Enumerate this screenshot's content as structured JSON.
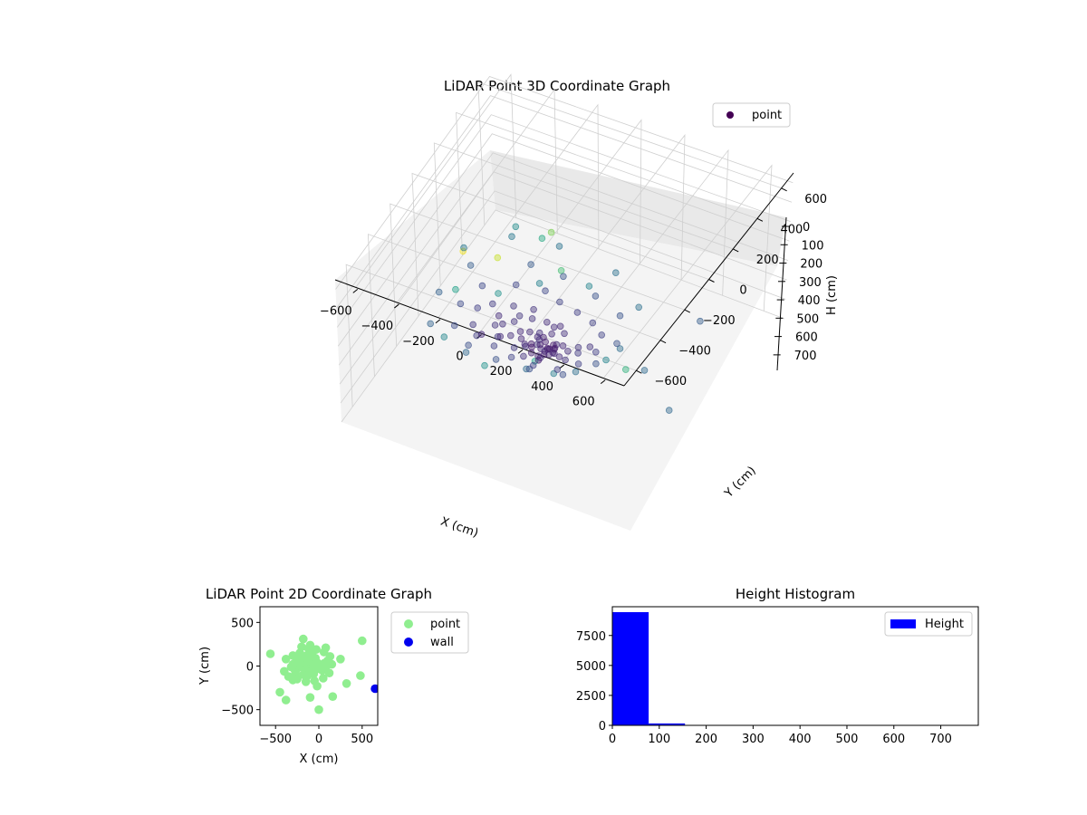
{
  "chart_data": [
    {
      "type": "scatter",
      "projection": "3d",
      "title": "LiDAR Point 3D Coordinate Graph",
      "xlabel": "X (cm)",
      "ylabel": "Y (cm)",
      "zlabel": "H (cm)",
      "xlim": [
        -700,
        700
      ],
      "ylim": [
        -700,
        700
      ],
      "zlim": [
        0,
        750
      ],
      "z_axis_inverted": true,
      "x_ticks": [
        -600,
        -400,
        -200,
        0,
        200,
        400,
        600
      ],
      "y_ticks": [
        -600,
        -400,
        -200,
        0,
        200,
        400,
        600
      ],
      "z_ticks": [
        0,
        100,
        200,
        300,
        400,
        500,
        600,
        700
      ],
      "colormap": "viridis",
      "color_by": "height",
      "legend": {
        "entries": [
          "point"
        ],
        "placement": "top-right",
        "marker_color": "#440154"
      },
      "grid": true,
      "series": [
        {
          "name": "point",
          "points": [
            [
              -150,
              0,
              60
            ],
            [
              -120,
              20,
              70
            ],
            [
              -100,
              -10,
              80
            ],
            [
              -90,
              30,
              55
            ],
            [
              -80,
              -20,
              65
            ],
            [
              -70,
              10,
              75
            ],
            [
              -60,
              40,
              60
            ],
            [
              -50,
              -30,
              85
            ],
            [
              -130,
              -40,
              70
            ],
            [
              -110,
              50,
              65
            ],
            [
              -140,
              35,
              90
            ],
            [
              -95,
              -45,
              72
            ],
            [
              -75,
              55,
              58
            ],
            [
              -65,
              -15,
              95
            ],
            [
              -55,
              25,
              68
            ],
            [
              -45,
              -5,
              78
            ],
            [
              -160,
              15,
              62
            ],
            [
              -170,
              -25,
              88
            ],
            [
              -125,
              60,
              74
            ],
            [
              -85,
              -60,
              66
            ],
            [
              -115,
              5,
              110
            ],
            [
              -105,
              -35,
              120
            ],
            [
              -135,
              45,
              105
            ],
            [
              -90,
              70,
              98
            ],
            [
              -60,
              -50,
              115
            ],
            [
              -40,
              20,
              102
            ],
            [
              -30,
              -20,
              92
            ],
            [
              -150,
              -55,
              108
            ],
            [
              -180,
              40,
              96
            ],
            [
              -200,
              0,
              84
            ],
            [
              -220,
              30,
              90
            ],
            [
              -240,
              -20,
              100
            ],
            [
              -260,
              50,
              110
            ],
            [
              -280,
              -40,
              95
            ],
            [
              -300,
              20,
              105
            ],
            [
              -320,
              -10,
              115
            ],
            [
              -340,
              60,
              100
            ],
            [
              -360,
              -60,
              90
            ],
            [
              -250,
              80,
              120
            ],
            [
              -270,
              -80,
              130
            ],
            [
              -200,
              100,
              110
            ],
            [
              -180,
              -100,
              125
            ],
            [
              -20,
              40,
              88
            ],
            [
              0,
              -30,
              94
            ],
            [
              20,
              10,
              100
            ],
            [
              40,
              -50,
              110
            ],
            [
              60,
              30,
              120
            ],
            [
              80,
              -10,
              130
            ],
            [
              100,
              60,
              115
            ],
            [
              -40,
              90,
              105
            ],
            [
              -60,
              -90,
              112
            ],
            [
              -100,
              110,
              98
            ],
            [
              -130,
              -110,
              108
            ],
            [
              -80,
              130,
              95
            ],
            [
              -140,
              120,
              100
            ],
            [
              -220,
              150,
              110
            ],
            [
              -300,
              120,
              120
            ],
            [
              -380,
              80,
              130
            ],
            [
              -420,
              20,
              140
            ],
            [
              -400,
              -60,
              125
            ],
            [
              -350,
              -120,
              135
            ],
            [
              -250,
              -150,
              145
            ],
            [
              -150,
              -180,
              150
            ],
            [
              -50,
              -170,
              140
            ],
            [
              50,
              -140,
              135
            ],
            [
              120,
              -80,
              145
            ],
            [
              150,
              20,
              140
            ],
            [
              130,
              110,
              150
            ],
            [
              60,
              160,
              145
            ],
            [
              -30,
              190,
              140
            ],
            [
              -120,
              200,
              150
            ],
            [
              -200,
              220,
              160
            ],
            [
              -330,
              200,
              155
            ],
            [
              -450,
              120,
              165
            ],
            [
              -480,
              -20,
              170
            ],
            [
              -440,
              -150,
              175
            ],
            [
              -330,
              -230,
              180
            ],
            [
              -180,
              -260,
              190
            ],
            [
              -30,
              -240,
              185
            ],
            [
              110,
              -200,
              180
            ],
            [
              210,
              -90,
              190
            ],
            [
              230,
              60,
              185
            ],
            [
              170,
              200,
              195
            ],
            [
              20,
              260,
              190
            ],
            [
              -150,
              290,
              200
            ],
            [
              -300,
              280,
              210
            ],
            [
              -520,
              150,
              220
            ],
            [
              -560,
              -60,
              230
            ],
            [
              -500,
              -250,
              240
            ],
            [
              -280,
              -340,
              250
            ],
            [
              0,
              -320,
              260
            ],
            [
              200,
              -250,
              270
            ],
            [
              300,
              -40,
              265
            ],
            [
              260,
              200,
              275
            ],
            [
              80,
              330,
              280
            ],
            [
              -200,
              350,
              290
            ],
            [
              -400,
              300,
              300
            ],
            [
              500,
              300,
              220
            ],
            [
              650,
              -250,
              250
            ],
            [
              450,
              -100,
              260
            ],
            [
              -550,
              150,
              300
            ],
            [
              -350,
              -400,
              350
            ],
            [
              -100,
              -500,
              380
            ],
            [
              150,
              -350,
              320
            ],
            [
              320,
              -200,
              340
            ],
            [
              -380,
              300,
              360
            ],
            [
              -150,
              80,
              330
            ],
            [
              50,
              150,
              340
            ],
            [
              -250,
              -100,
              380
            ],
            [
              100,
              -420,
              420
            ],
            [
              -200,
              200,
              450
            ],
            [
              -400,
              -200,
              420
            ],
            [
              0,
              0,
              520
            ],
            [
              -100,
              100,
              600
            ],
            [
              500,
              -350,
              480
            ],
            [
              -300,
              -300,
              740
            ],
            [
              -180,
              -220,
              690
            ]
          ]
        }
      ]
    },
    {
      "type": "scatter",
      "title": "LiDAR Point 2D Coordinate Graph",
      "xlabel": "X (cm)",
      "ylabel": "Y (cm)",
      "xlim": [
        -680,
        680
      ],
      "ylim": [
        -680,
        680
      ],
      "x_ticks": [
        -500,
        0,
        500
      ],
      "y_ticks": [
        -500,
        0,
        500
      ],
      "legend": {
        "placement": "outside-right"
      },
      "series": [
        {
          "name": "point",
          "color": "#90ee90",
          "points": [
            [
              -150,
              0
            ],
            [
              -120,
              20
            ],
            [
              -100,
              -10
            ],
            [
              -90,
              30
            ],
            [
              -80,
              -20
            ],
            [
              -70,
              10
            ],
            [
              -60,
              40
            ],
            [
              -50,
              -30
            ],
            [
              -130,
              -40
            ],
            [
              -110,
              50
            ],
            [
              -140,
              35
            ],
            [
              -95,
              -45
            ],
            [
              -75,
              55
            ],
            [
              -65,
              -15
            ],
            [
              -55,
              25
            ],
            [
              -45,
              -5
            ],
            [
              -160,
              15
            ],
            [
              -170,
              -25
            ],
            [
              -125,
              60
            ],
            [
              -85,
              -60
            ],
            [
              -200,
              0
            ],
            [
              -220,
              30
            ],
            [
              -240,
              -20
            ],
            [
              -260,
              50
            ],
            [
              -280,
              -40
            ],
            [
              -300,
              20
            ],
            [
              -320,
              -10
            ],
            [
              -250,
              80
            ],
            [
              -270,
              -80
            ],
            [
              -200,
              100
            ],
            [
              -180,
              -100
            ],
            [
              -20,
              40
            ],
            [
              0,
              -30
            ],
            [
              20,
              10
            ],
            [
              40,
              -50
            ],
            [
              60,
              30
            ],
            [
              80,
              -10
            ],
            [
              100,
              60
            ],
            [
              -40,
              90
            ],
            [
              -60,
              -90
            ],
            [
              -100,
              110
            ],
            [
              -130,
              -110
            ],
            [
              -80,
              130
            ],
            [
              -140,
              120
            ],
            [
              -220,
              150
            ],
            [
              -300,
              120
            ],
            [
              -380,
              80
            ],
            [
              -400,
              -60
            ],
            [
              -350,
              -120
            ],
            [
              -250,
              -150
            ],
            [
              -150,
              -180
            ],
            [
              -50,
              -170
            ],
            [
              50,
              -140
            ],
            [
              120,
              -80
            ],
            [
              150,
              20
            ],
            [
              130,
              110
            ],
            [
              60,
              160
            ],
            [
              -30,
              190
            ],
            [
              -120,
              200
            ],
            [
              -200,
              220
            ],
            [
              -180,
              310
            ],
            [
              -100,
              240
            ],
            [
              80,
              210
            ],
            [
              250,
              80
            ],
            [
              320,
              -200
            ],
            [
              160,
              -350
            ],
            [
              -100,
              -360
            ],
            [
              0,
              -500
            ],
            [
              -380,
              -390
            ],
            [
              -450,
              -300
            ],
            [
              -560,
              140
            ],
            [
              500,
              290
            ],
            [
              480,
              -110
            ],
            [
              -300,
              -160
            ],
            [
              -20,
              -230
            ]
          ]
        },
        {
          "name": "wall",
          "color": "#0000ee",
          "points": [
            [
              650,
              -260
            ]
          ]
        }
      ]
    },
    {
      "type": "bar",
      "title": "Height Histogram",
      "xlim": [
        0,
        780
      ],
      "ylim": [
        0,
        9900
      ],
      "x_ticks": [
        0,
        100,
        200,
        300,
        400,
        500,
        600,
        700
      ],
      "y_ticks": [
        0,
        2500,
        5000,
        7500
      ],
      "color": "#0000ff",
      "legend": {
        "placement": "top-right"
      },
      "series": [
        {
          "name": "Height",
          "bins": [
            [
              0,
              77.5,
              9450
            ],
            [
              77.5,
              155,
              160
            ],
            [
              155,
              232.5,
              30
            ],
            [
              232.5,
              310,
              14
            ],
            [
              310,
              387.5,
              8
            ],
            [
              387.5,
              465,
              5
            ],
            [
              465,
              542.5,
              3
            ],
            [
              542.5,
              620,
              2
            ],
            [
              620,
              697.5,
              1
            ],
            [
              697.5,
              775,
              1
            ]
          ]
        }
      ]
    }
  ]
}
